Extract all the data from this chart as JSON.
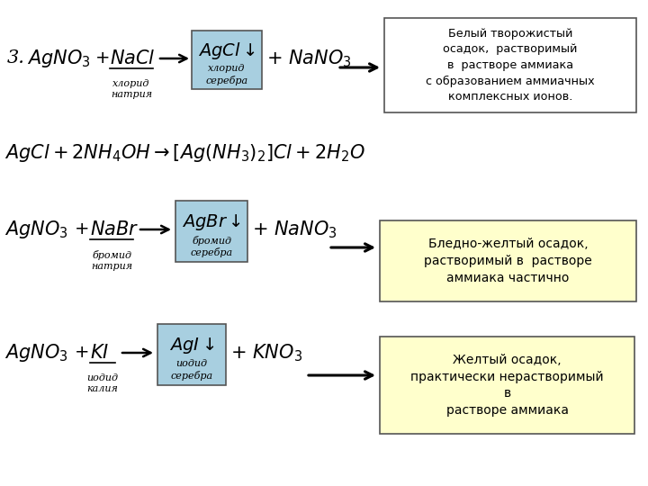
{
  "bg_color": "#ffffff",
  "box1_color": "#a8cfe0",
  "box2_color": "#a8cfe0",
  "box3_color": "#a8cfe0",
  "desc_box1_color": "#ffffff",
  "desc_box2_color": "#ffffcc",
  "desc_box3_color": "#ffffcc",
  "desc1_lines": [
    "Белый творожистый",
    "осадок,  растворимый",
    "в  растворе аммиака",
    "с образованием аммиачных",
    "комплексных ионов."
  ],
  "desc2_lines": [
    "Бледно-желтый осадок,",
    "растворимый в  растворе",
    "аммиака частично"
  ],
  "desc3_lines": [
    "Желтый осадок,",
    "практически нерастворимый",
    "в",
    "растворе аммиака"
  ],
  "label1": "хлорид\nнатрия",
  "box1_label": "хлорид\nсеребра",
  "label2": "бромид\nнатрия",
  "box2_label": "бромид\nсеребра",
  "label3": "иодид\nкалия",
  "box3_label": "иодид\nсеребра"
}
